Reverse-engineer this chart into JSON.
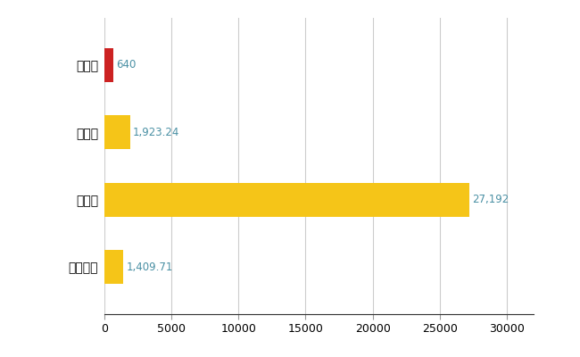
{
  "categories": [
    "筑上町",
    "県平均",
    "県最大",
    "全国平均"
  ],
  "values": [
    640,
    1923.24,
    27192,
    1409.71
  ],
  "bar_colors": [
    "#cc2222",
    "#f5c518",
    "#f5c518",
    "#f5c518"
  ],
  "bar_labels": [
    "640",
    "1,923.24",
    "27,192",
    "1,409.71"
  ],
  "xlim": [
    0,
    32000
  ],
  "xticks": [
    0,
    5000,
    10000,
    15000,
    20000,
    25000,
    30000
  ],
  "xtick_labels": [
    "0",
    "5000",
    "10000",
    "15000",
    "20000",
    "25000",
    "30000"
  ],
  "grid_color": "#cccccc",
  "background_color": "#ffffff",
  "label_color": "#4a90a4",
  "label_fontsize": 8.5,
  "ytick_fontsize": 10,
  "xtick_fontsize": 9,
  "bar_height": 0.5
}
